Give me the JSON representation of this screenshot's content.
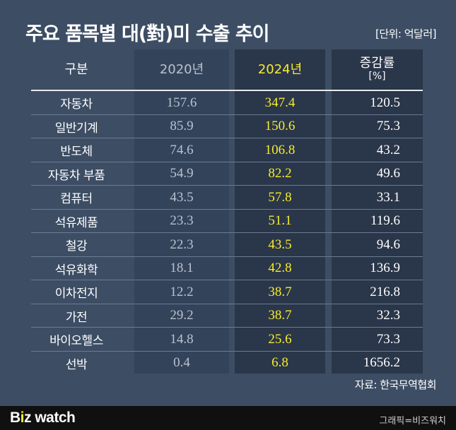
{
  "title": "주요 품목별 대(對)미 수출 추이",
  "unit": "[단위: 억달러]",
  "headers": {
    "item": "구분",
    "y2020": "2020년",
    "y2024": "2024년",
    "rate": "증감률",
    "rate_unit": "[%]"
  },
  "rows": [
    {
      "item": "자동차",
      "v2020": "157.6",
      "v2024": "347.4",
      "rate": "120.5"
    },
    {
      "item": "일반기계",
      "v2020": "85.9",
      "v2024": "150.6",
      "rate": "75.3"
    },
    {
      "item": "반도체",
      "v2020": "74.6",
      "v2024": "106.8",
      "rate": "43.2"
    },
    {
      "item": "자동차 부품",
      "v2020": "54.9",
      "v2024": "82.2",
      "rate": "49.6"
    },
    {
      "item": "컴퓨터",
      "v2020": "43.5",
      "v2024": "57.8",
      "rate": "33.1"
    },
    {
      "item": "석유제품",
      "v2020": "23.3",
      "v2024": "51.1",
      "rate": "119.6"
    },
    {
      "item": "철강",
      "v2020": "22.3",
      "v2024": "43.5",
      "rate": "94.6"
    },
    {
      "item": "석유화학",
      "v2020": "18.1",
      "v2024": "42.8",
      "rate": "136.9"
    },
    {
      "item": "이차전지",
      "v2020": "12.2",
      "v2024": "38.7",
      "rate": "216.8"
    },
    {
      "item": "가전",
      "v2020": "29.2",
      "v2024": "38.7",
      "rate": "32.3"
    },
    {
      "item": "바이오헬스",
      "v2020": "14.8",
      "v2024": "25.6",
      "rate": "73.3"
    },
    {
      "item": "선박",
      "v2020": "0.4",
      "v2024": "6.8",
      "rate": "1656.2"
    }
  ],
  "source": "자료: 한국무역협회",
  "footer": {
    "logo_prefix": "B",
    "logo_accent": "i",
    "logo_suffix": "z watch",
    "credit": "그래픽=비즈워치"
  },
  "colors": {
    "background": "#3c4d64",
    "highlight": "#f6ec2d",
    "column_dark": "#2a3649",
    "footer": "#101010"
  }
}
